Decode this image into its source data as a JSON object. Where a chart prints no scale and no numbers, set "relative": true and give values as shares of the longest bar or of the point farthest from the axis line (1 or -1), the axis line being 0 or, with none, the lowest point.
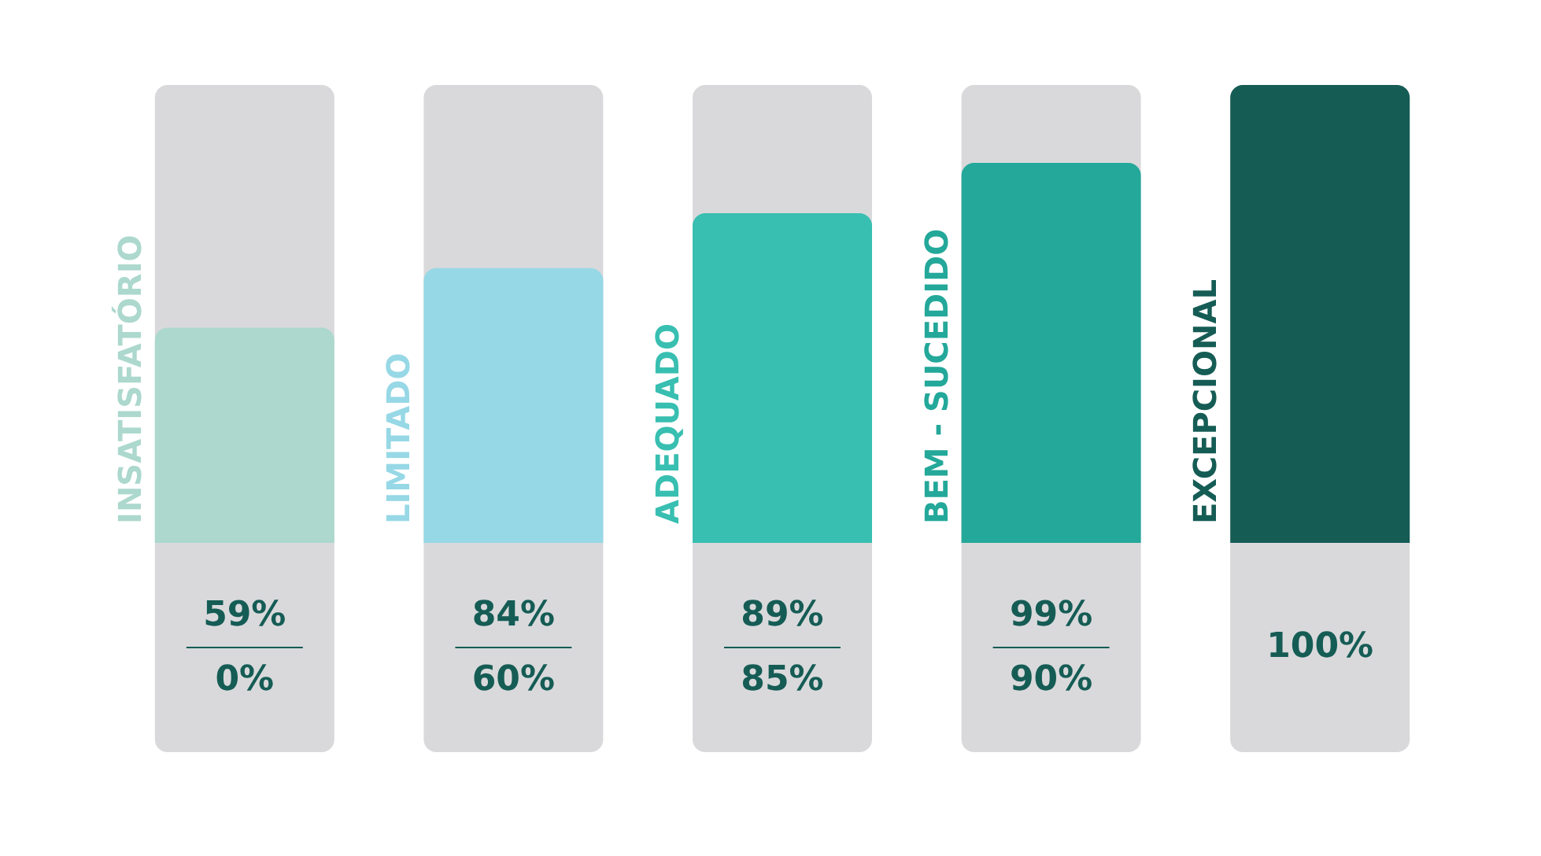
{
  "chart_data": {
    "type": "bar",
    "relative": true,
    "categories": [
      "INSATISFATÓRIO",
      "LIMITADO",
      "ADEQUADO",
      "BEM - SUCEDIDO",
      "EXCEPCIONAL"
    ],
    "values": [
      0.47,
      0.6,
      0.72,
      0.83,
      1
    ],
    "colors": [
      "#acd8cd",
      "#97d8e6",
      "#38bfb1",
      "#23a89a",
      "#155c55"
    ],
    "annotations": [
      "59%\n0%",
      "84%\n60%",
      "89%\n85%",
      "99%\n90%",
      "100%"
    ],
    "grid": false
  }
}
